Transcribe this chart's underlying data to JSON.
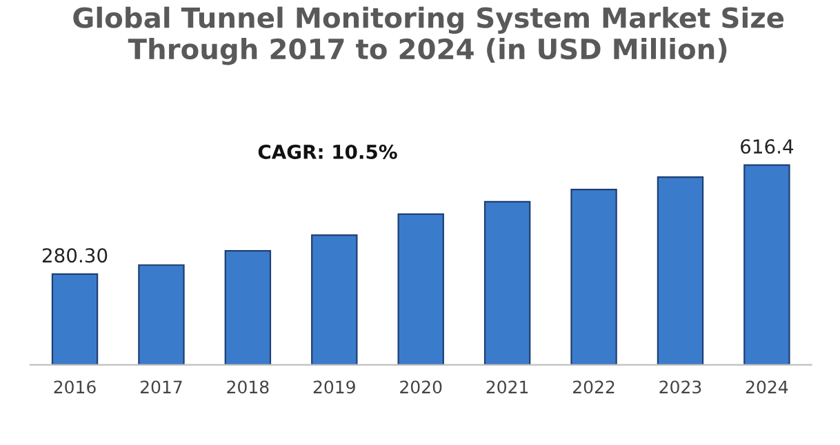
{
  "chart_data": {
    "type": "bar",
    "title": "Global Tunnel Monitoring System Market Size Through 2017 to 2024 (in USD Million)",
    "categories": [
      "2016",
      "2017",
      "2018",
      "2019",
      "2020",
      "2021",
      "2022",
      "2023",
      "2024"
    ],
    "values": [
      280.3,
      308,
      352,
      400,
      465,
      503,
      541,
      579,
      616.4
    ],
    "value_labels": [
      "280.30",
      null,
      null,
      null,
      null,
      null,
      null,
      null,
      "616.4"
    ],
    "color": "#3b7bcc",
    "annotations": [
      "CAGR: 10.5%"
    ],
    "grid": false,
    "legend": false,
    "tick_labels": "x"
  }
}
